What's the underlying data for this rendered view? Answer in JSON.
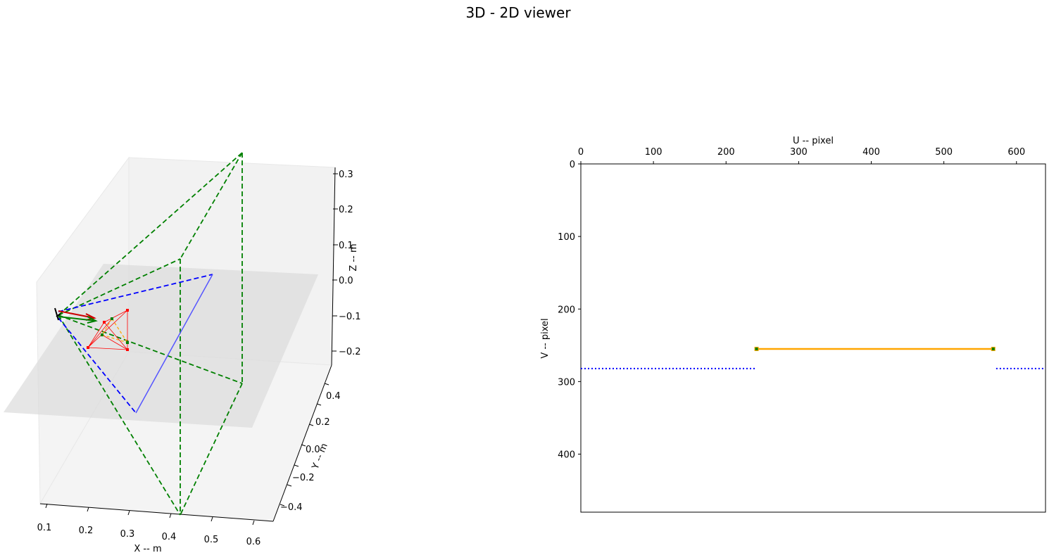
{
  "figure": {
    "title": "3D - 2D viewer"
  },
  "colors": {
    "frustum": "#008000",
    "line": "#0000ff",
    "segment": "#ffa500",
    "marker": "#ff0000",
    "arrow_red": "#cc0000",
    "arrow_green": "#008000",
    "pane_light": "#f2f2f2",
    "pane_dark": "#e0e0e0"
  },
  "chart_data": [
    {
      "type": "3d-scene",
      "xlabel": "X -- m",
      "ylabel": "Y -- m",
      "zlabel": "Z -- m",
      "xticks": [
        "0.1",
        "0.2",
        "0.3",
        "0.4",
        "0.5",
        "0.6"
      ],
      "yticks": [
        "0.4",
        "0.2",
        "0.0",
        "−0.2",
        "−0.4"
      ],
      "zticks": [
        "0.3",
        "0.2",
        "0.1",
        "0.0",
        "−0.1",
        "−0.2"
      ],
      "grid": false
    },
    {
      "type": "line",
      "xlabel": "U -- pixel",
      "ylabel": "V -- pixel",
      "xlim": [
        0,
        640
      ],
      "ylim": [
        480,
        0
      ],
      "xaxis_position": "top",
      "xticks": [
        0,
        100,
        200,
        300,
        400,
        500,
        600
      ],
      "yticks": [
        0,
        100,
        200,
        300,
        400
      ],
      "series": [
        {
          "style": "solid",
          "color": "orange",
          "x": [
            242,
            568
          ],
          "y": [
            255,
            255
          ],
          "markers": true
        },
        {
          "style": "dotted",
          "color": "blue",
          "x": [
            0,
            242
          ],
          "y": [
            282,
            282
          ]
        },
        {
          "style": "dotted",
          "color": "blue",
          "x": [
            572,
            640
          ],
          "y": [
            282,
            282
          ]
        }
      ]
    }
  ]
}
